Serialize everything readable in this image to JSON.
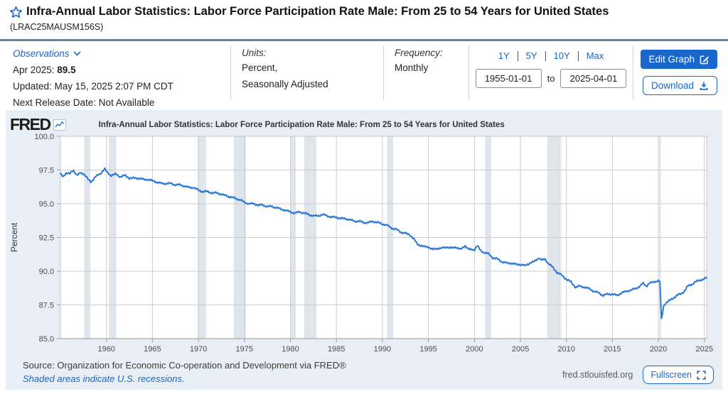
{
  "header": {
    "title": "Infra-Annual Labor Statistics: Labor Force Participation Rate Male: From 25 to 54 Years for United States",
    "series_id": "(LRAC25MAUSM156S)"
  },
  "observations": {
    "label": "Observations",
    "latest_period": "Apr 2025: ",
    "latest_value": "89.5",
    "updated": "Updated: May 15, 2025 2:07 PM CDT",
    "next_release": "Next Release Date: Not Available"
  },
  "units": {
    "label": "Units:",
    "line1": "Percent,",
    "line2": "Seasonally Adjusted"
  },
  "frequency": {
    "label": "Frequency:",
    "value": "Monthly"
  },
  "range_controls": {
    "options": [
      "1Y",
      "5Y",
      "10Y",
      "Max"
    ],
    "start_date": "1955-01-01",
    "to_label": "to",
    "end_date": "2025-04-01"
  },
  "actions": {
    "edit_graph": "Edit Graph",
    "download": "Download"
  },
  "chart": {
    "brand": "FRED",
    "legend_label": "Infra-Annual Labor Statistics: Labor Force Participation Rate Male: From 25 to 54 Years for United States",
    "footer_source": "Source: Organization for Economic Co-operation and Development via FRED®",
    "footer_note": "Shaded areas indicate U.S. recessions.",
    "footer_site": "fred.stlouisfed.org",
    "fullscreen_label": "Fullscreen"
  },
  "icons": {
    "favorite-star": "outlined star",
    "observations-chevron": "chevron-down",
    "edit-graph": "pencil-in-square",
    "download": "down-arrow-to-tray",
    "fred-sparkline": "mini line chart",
    "fullscreen": "corner brackets"
  },
  "colors": {
    "accent_blue": "#1966cc",
    "line_blue": "#2374d8",
    "top_rule": "#5e87a7",
    "panel_bg": "#e8eef6",
    "recession_band": "#e0e4eb",
    "gridline": "#cdcdcd"
  },
  "chart_data": {
    "type": "line",
    "title": "Infra-Annual Labor Statistics: Labor Force Participation Rate Male: From 25 to 54 Years for United States",
    "series_name": "Labor Force Participation Rate Male: 25 to 54 Years, United States (Percent, Seasonally Adjusted, Monthly)",
    "xlabel": "",
    "ylabel": "Percent",
    "x_range": [
      1955,
      2025.25
    ],
    "ylim": [
      85.0,
      100.0
    ],
    "y_ticks": [
      85.0,
      87.5,
      90.0,
      92.5,
      95.0,
      97.5,
      100.0
    ],
    "x_ticks": [
      1960,
      1965,
      1970,
      1975,
      1980,
      1985,
      1990,
      1995,
      2000,
      2005,
      2010,
      2015,
      2020,
      2025
    ],
    "grid": true,
    "legend_position": "top",
    "line_color": "#2374d8",
    "recession_color": "#e0e4eb",
    "last_observation": {
      "period": "Apr 2025",
      "value": 89.5
    },
    "recessions": [
      [
        1957.58,
        1958.25
      ],
      [
        1960.25,
        1961.08
      ],
      [
        1969.92,
        1970.83
      ],
      [
        1973.83,
        1975.17
      ],
      [
        1980.0,
        1980.58
      ],
      [
        1981.5,
        1982.83
      ],
      [
        1990.5,
        1991.17
      ],
      [
        2001.17,
        2001.83
      ],
      [
        2007.92,
        2009.42
      ],
      [
        2020.08,
        2020.25
      ]
    ],
    "points": [
      [
        1955.0,
        97.2
      ],
      [
        1955.3,
        97.0
      ],
      [
        1955.6,
        97.3
      ],
      [
        1956.0,
        97.2
      ],
      [
        1956.4,
        97.5
      ],
      [
        1956.8,
        97.1
      ],
      [
        1957.2,
        97.3
      ],
      [
        1957.6,
        97.2
      ],
      [
        1958.0,
        96.8
      ],
      [
        1958.3,
        96.6
      ],
      [
        1958.8,
        97.0
      ],
      [
        1959.3,
        97.2
      ],
      [
        1959.8,
        97.6
      ],
      [
        1960.1,
        97.3
      ],
      [
        1960.5,
        97.1
      ],
      [
        1961.0,
        97.2
      ],
      [
        1961.5,
        97.0
      ],
      [
        1962.0,
        97.1
      ],
      [
        1962.5,
        96.9
      ],
      [
        1963.0,
        96.9
      ],
      [
        1963.5,
        96.9
      ],
      [
        1964.0,
        96.8
      ],
      [
        1964.5,
        96.8
      ],
      [
        1965.0,
        96.7
      ],
      [
        1965.5,
        96.6
      ],
      [
        1966.0,
        96.5
      ],
      [
        1966.5,
        96.5
      ],
      [
        1967.0,
        96.5
      ],
      [
        1967.5,
        96.4
      ],
      [
        1968.0,
        96.4
      ],
      [
        1968.5,
        96.3
      ],
      [
        1969.0,
        96.2
      ],
      [
        1969.5,
        96.2
      ],
      [
        1970.0,
        96.0
      ],
      [
        1970.5,
        95.9
      ],
      [
        1971.0,
        95.9
      ],
      [
        1971.5,
        95.8
      ],
      [
        1972.0,
        95.8
      ],
      [
        1972.5,
        95.7
      ],
      [
        1973.0,
        95.6
      ],
      [
        1973.5,
        95.5
      ],
      [
        1974.0,
        95.4
      ],
      [
        1974.5,
        95.3
      ],
      [
        1975.0,
        95.1
      ],
      [
        1975.5,
        95.0
      ],
      [
        1976.0,
        95.0
      ],
      [
        1976.5,
        94.9
      ],
      [
        1977.0,
        94.9
      ],
      [
        1977.5,
        94.8
      ],
      [
        1978.0,
        94.8
      ],
      [
        1978.5,
        94.7
      ],
      [
        1979.0,
        94.6
      ],
      [
        1979.5,
        94.5
      ],
      [
        1980.0,
        94.4
      ],
      [
        1980.5,
        94.3
      ],
      [
        1981.0,
        94.4
      ],
      [
        1981.5,
        94.3
      ],
      [
        1982.0,
        94.2
      ],
      [
        1982.5,
        94.1
      ],
      [
        1983.0,
        94.1
      ],
      [
        1983.5,
        94.2
      ],
      [
        1984.0,
        94.1
      ],
      [
        1984.5,
        94.0
      ],
      [
        1985.0,
        94.0
      ],
      [
        1985.5,
        93.9
      ],
      [
        1986.0,
        93.9
      ],
      [
        1986.5,
        93.8
      ],
      [
        1987.0,
        93.7
      ],
      [
        1987.5,
        93.7
      ],
      [
        1988.0,
        93.6
      ],
      [
        1988.5,
        93.6
      ],
      [
        1989.0,
        93.7
      ],
      [
        1989.5,
        93.6
      ],
      [
        1990.0,
        93.5
      ],
      [
        1990.5,
        93.4
      ],
      [
        1991.0,
        93.2
      ],
      [
        1991.5,
        93.1
      ],
      [
        1992.0,
        92.9
      ],
      [
        1992.5,
        92.8
      ],
      [
        1993.0,
        92.7
      ],
      [
        1993.4,
        92.4
      ],
      [
        1993.8,
        92.0
      ],
      [
        1994.2,
        91.9
      ],
      [
        1994.6,
        91.8
      ],
      [
        1995.0,
        91.8
      ],
      [
        1995.5,
        91.6
      ],
      [
        1996.0,
        91.7
      ],
      [
        1996.5,
        91.7
      ],
      [
        1997.0,
        91.8
      ],
      [
        1997.5,
        91.7
      ],
      [
        1998.0,
        91.8
      ],
      [
        1998.5,
        91.6
      ],
      [
        1999.0,
        91.9
      ],
      [
        1999.4,
        91.6
      ],
      [
        2000.0,
        91.6
      ],
      [
        2000.3,
        91.9
      ],
      [
        2000.7,
        91.5
      ],
      [
        2001.0,
        91.4
      ],
      [
        2001.5,
        91.3
      ],
      [
        2002.0,
        91.0
      ],
      [
        2002.5,
        90.9
      ],
      [
        2003.0,
        90.7
      ],
      [
        2003.5,
        90.6
      ],
      [
        2004.0,
        90.6
      ],
      [
        2004.5,
        90.5
      ],
      [
        2005.0,
        90.5
      ],
      [
        2005.5,
        90.4
      ],
      [
        2006.0,
        90.6
      ],
      [
        2006.5,
        90.7
      ],
      [
        2007.0,
        91.0
      ],
      [
        2007.3,
        90.8
      ],
      [
        2007.7,
        90.9
      ],
      [
        2008.0,
        90.6
      ],
      [
        2008.5,
        90.3
      ],
      [
        2009.0,
        89.9
      ],
      [
        2009.5,
        89.7
      ],
      [
        2010.0,
        89.4
      ],
      [
        2010.5,
        89.2
      ],
      [
        2011.0,
        88.8
      ],
      [
        2011.5,
        88.9
      ],
      [
        2012.0,
        88.8
      ],
      [
        2012.5,
        88.7
      ],
      [
        2013.0,
        88.5
      ],
      [
        2013.5,
        88.4
      ],
      [
        2014.0,
        88.2
      ],
      [
        2014.5,
        88.3
      ],
      [
        2015.0,
        88.3
      ],
      [
        2015.5,
        88.2
      ],
      [
        2016.0,
        88.4
      ],
      [
        2016.5,
        88.5
      ],
      [
        2017.0,
        88.6
      ],
      [
        2017.5,
        88.7
      ],
      [
        2018.0,
        88.9
      ],
      [
        2018.3,
        89.1
      ],
      [
        2018.7,
        88.9
      ],
      [
        2019.0,
        89.1
      ],
      [
        2019.5,
        89.2
      ],
      [
        2020.0,
        89.3
      ],
      [
        2020.17,
        89.2
      ],
      [
        2020.33,
        86.4
      ],
      [
        2020.6,
        87.5
      ],
      [
        2020.9,
        87.7
      ],
      [
        2021.2,
        87.8
      ],
      [
        2021.6,
        88.0
      ],
      [
        2022.0,
        88.2
      ],
      [
        2022.4,
        88.3
      ],
      [
        2022.8,
        88.5
      ],
      [
        2023.2,
        88.9
      ],
      [
        2023.6,
        89.0
      ],
      [
        2024.0,
        89.2
      ],
      [
        2024.4,
        89.3
      ],
      [
        2024.8,
        89.4
      ],
      [
        2025.25,
        89.5
      ]
    ]
  }
}
